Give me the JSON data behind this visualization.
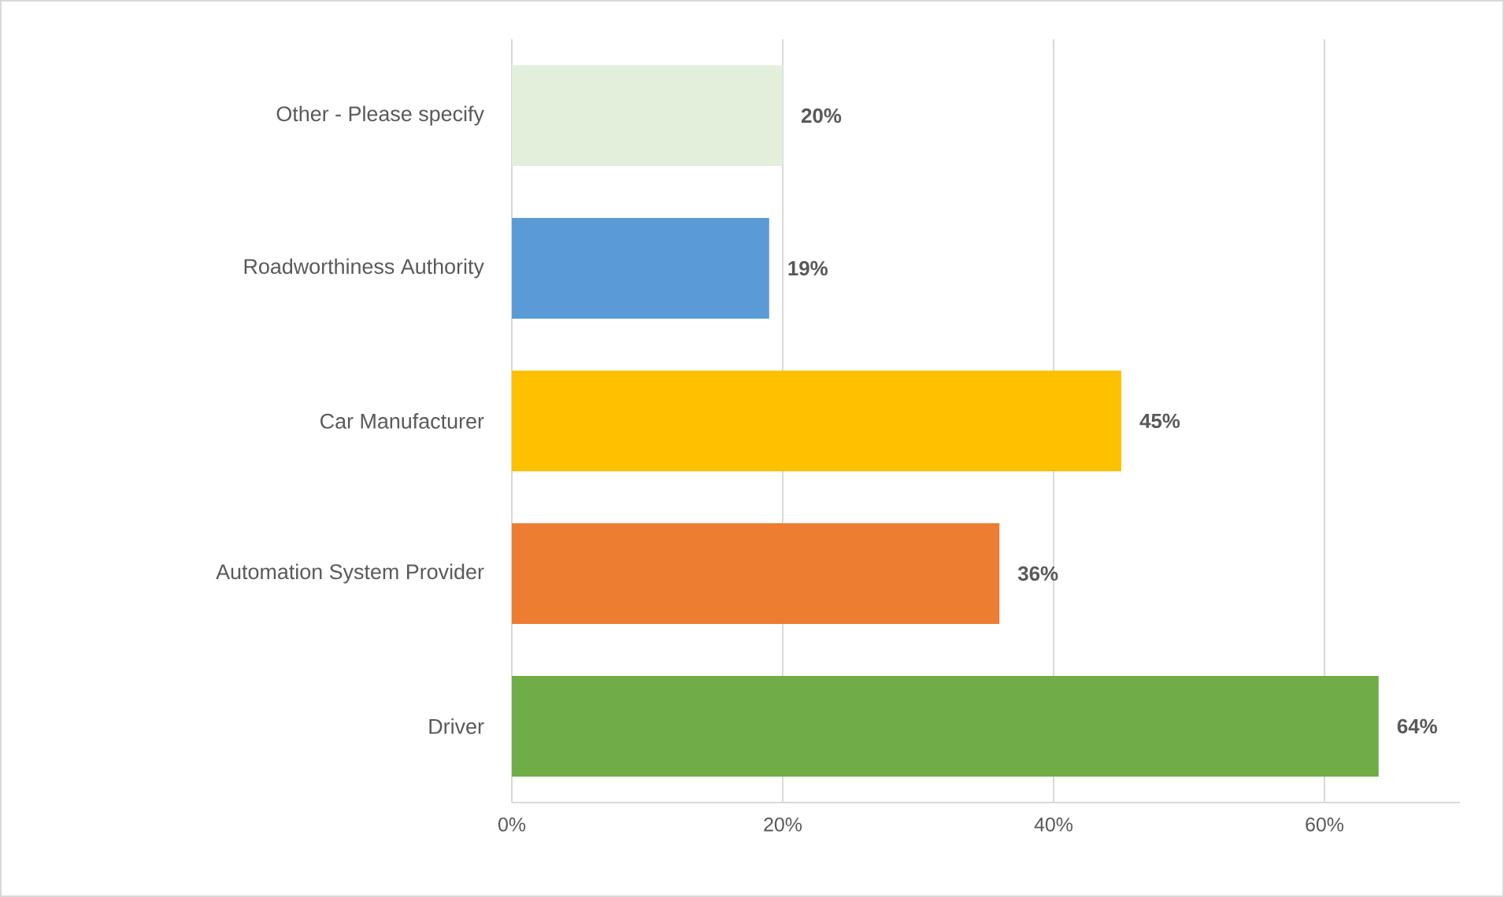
{
  "chart_data": {
    "type": "bar",
    "orientation": "horizontal",
    "categories": [
      "Other - Please specify",
      "Roadworthiness Authority",
      "Car Manufacturer",
      "Automation System Provider",
      "Driver"
    ],
    "values": [
      20,
      19,
      45,
      36,
      64
    ],
    "colors": [
      "#e2efda",
      "#5b9bd5",
      "#ffc000",
      "#ed7d31",
      "#70ad47"
    ],
    "value_labels": [
      "20%",
      "19%",
      "45%",
      "36%",
      "64%"
    ],
    "xlim": [
      0,
      70
    ],
    "xticks": [
      {
        "value": 0,
        "label": "0%"
      },
      {
        "value": 20,
        "label": "20%"
      },
      {
        "value": 40,
        "label": "40%"
      },
      {
        "value": 60,
        "label": "60%"
      }
    ],
    "grid": "x"
  }
}
